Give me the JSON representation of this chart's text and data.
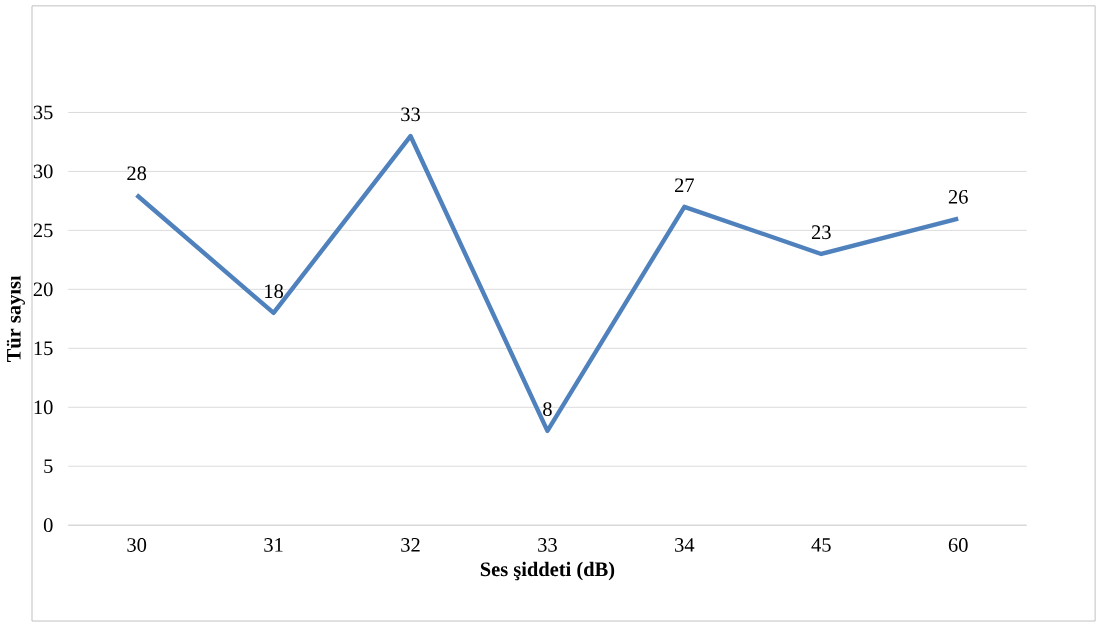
{
  "chart_data": {
    "type": "line",
    "xlabel": "Ses şiddeti (dB)",
    "ylabel": "Tür sayısı",
    "categories": [
      "30",
      "31",
      "32",
      "33",
      "34",
      "45",
      "60"
    ],
    "values": [
      28,
      18,
      33,
      8,
      27,
      23,
      26
    ],
    "color": "#4f81bd",
    "ylim": [
      0,
      35
    ],
    "yticks": [
      0,
      5,
      10,
      15,
      20,
      25,
      30,
      35
    ],
    "grid": "y",
    "data_labels": true,
    "marker": "none",
    "line_style": "solid"
  }
}
